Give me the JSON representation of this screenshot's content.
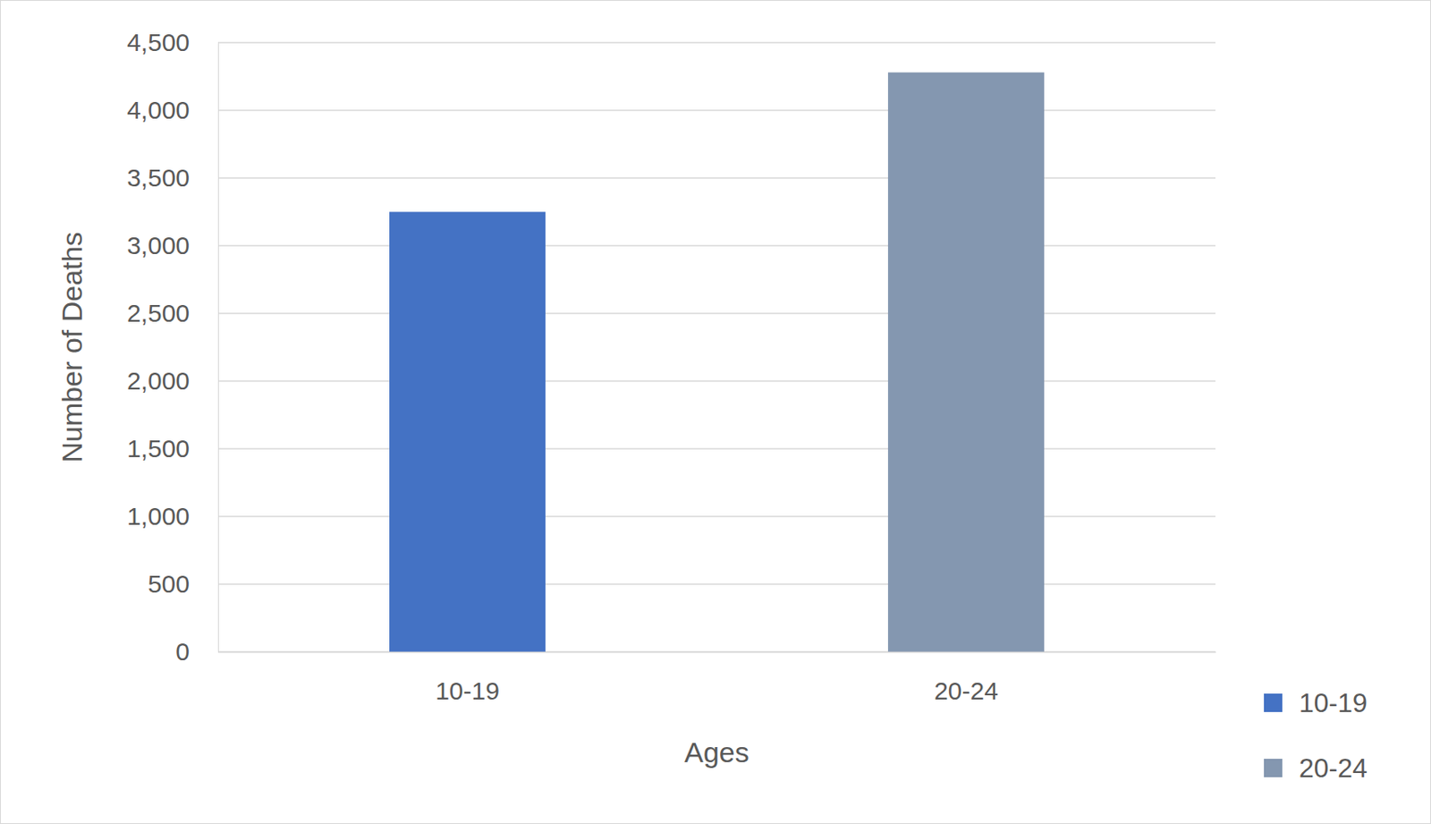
{
  "chart_data": {
    "type": "bar",
    "x_label": "Ages",
    "y_label": "Number of Deaths",
    "categories": [
      "10-19",
      "20-24"
    ],
    "values": [
      3250,
      4280
    ],
    "colors": [
      "#4472c4",
      "#8497b0"
    ],
    "ylim": [
      0,
      4500
    ],
    "yticks": [
      0,
      500,
      {
        "value": 1000,
        "label": "1,000"
      },
      {
        "value": 1500,
        "label": "1,500"
      },
      {
        "value": 2000,
        "label": "2,000"
      },
      {
        "value": 2500,
        "label": "2,500"
      },
      {
        "value": 3000,
        "label": "3,000"
      },
      {
        "value": 3500,
        "label": "3,500"
      },
      {
        "value": 4000,
        "label": "4,000"
      },
      {
        "value": 4500,
        "label": "4,500"
      }
    ],
    "grid": true,
    "legend": "bottom-right"
  }
}
